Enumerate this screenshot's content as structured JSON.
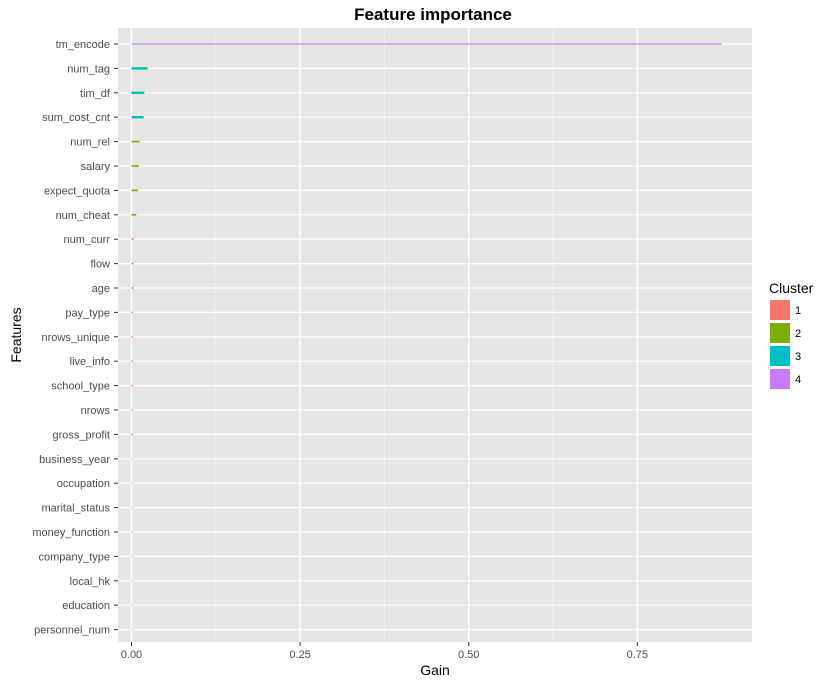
{
  "chart_data": {
    "type": "bar",
    "orientation": "horizontal",
    "title": "Feature importance",
    "xlabel": "Gain",
    "ylabel": "Features",
    "xlim": [
      -0.02,
      0.92
    ],
    "xticks": [
      0.0,
      0.25,
      0.5,
      0.75
    ],
    "xtick_labels": [
      "0.00",
      "0.25",
      "0.50",
      "0.75"
    ],
    "grid": true,
    "legend": {
      "title": "Cluster",
      "placement": "right",
      "entries": [
        {
          "label": "1",
          "color": "#F8766D"
        },
        {
          "label": "2",
          "color": "#7CAE00"
        },
        {
          "label": "3",
          "color": "#00BFC4"
        },
        {
          "label": "4",
          "color": "#C77CFF"
        }
      ]
    },
    "bars": [
      {
        "feature": "tm_encode",
        "gain": 0.875,
        "cluster": "4"
      },
      {
        "feature": "num_tag",
        "gain": 0.024,
        "cluster": "3"
      },
      {
        "feature": "tim_df",
        "gain": 0.019,
        "cluster": "3"
      },
      {
        "feature": "sum_cost_cnt",
        "gain": 0.018,
        "cluster": "3"
      },
      {
        "feature": "num_rel",
        "gain": 0.012,
        "cluster": "2"
      },
      {
        "feature": "salary",
        "gain": 0.011,
        "cluster": "2"
      },
      {
        "feature": "expect_quota",
        "gain": 0.01,
        "cluster": "2"
      },
      {
        "feature": "num_cheat",
        "gain": 0.007,
        "cluster": "2"
      },
      {
        "feature": "num_curr",
        "gain": 0.003,
        "cluster": "1"
      },
      {
        "feature": "flow",
        "gain": 0.003,
        "cluster": "1"
      },
      {
        "feature": "age",
        "gain": 0.003,
        "cluster": "1"
      },
      {
        "feature": "pay_type",
        "gain": 0.002,
        "cluster": "1"
      },
      {
        "feature": "nrows_unique",
        "gain": 0.002,
        "cluster": "1"
      },
      {
        "feature": "live_info",
        "gain": 0.002,
        "cluster": "1"
      },
      {
        "feature": "school_type",
        "gain": 0.002,
        "cluster": "1"
      },
      {
        "feature": "nrows",
        "gain": 0.002,
        "cluster": "1"
      },
      {
        "feature": "gross_profit",
        "gain": 0.002,
        "cluster": "1"
      },
      {
        "feature": "business_year",
        "gain": 0.001,
        "cluster": "1"
      },
      {
        "feature": "occupation",
        "gain": 0.001,
        "cluster": "1"
      },
      {
        "feature": "marital_status",
        "gain": 0.001,
        "cluster": "1"
      },
      {
        "feature": "money_function",
        "gain": 0.001,
        "cluster": "1"
      },
      {
        "feature": "company_type",
        "gain": 0.001,
        "cluster": "1"
      },
      {
        "feature": "local_hk",
        "gain": 0.001,
        "cluster": "1"
      },
      {
        "feature": "education",
        "gain": 0.0005,
        "cluster": "1"
      },
      {
        "feature": "personnel_num",
        "gain": 0.0005,
        "cluster": "1"
      }
    ]
  }
}
